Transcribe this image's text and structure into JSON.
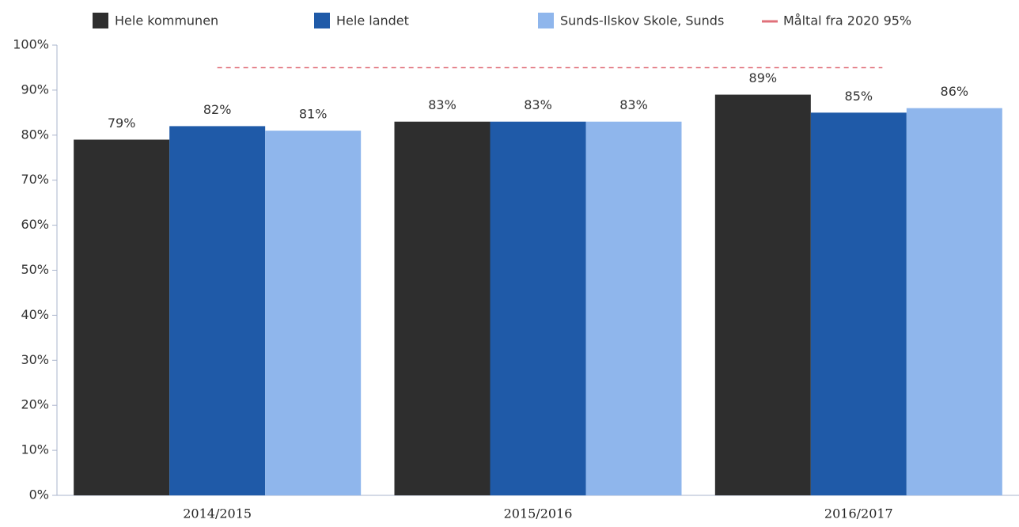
{
  "chart_data": {
    "type": "bar",
    "categories": [
      "2014/2015",
      "2015/2016",
      "2016/2017"
    ],
    "series": [
      {
        "name": "Hele kommunen",
        "color": "#2e2e2e",
        "values": [
          79,
          83,
          89
        ],
        "value_labels": [
          "79%",
          "83%",
          "89%"
        ]
      },
      {
        "name": "Hele landet",
        "color": "#1f5aa8",
        "values": [
          82,
          83,
          85
        ],
        "value_labels": [
          "82%",
          "83%",
          "85%"
        ]
      },
      {
        "name": "Sunds-Ilskov Skole, Sunds",
        "color": "#8fb6ec",
        "values": [
          81,
          83,
          86
        ],
        "value_labels": [
          "81%",
          "83%",
          "86%"
        ]
      }
    ],
    "target": {
      "name": "Måltal fra 2020 95%",
      "value": 95,
      "color": "#e0707a"
    },
    "ylim": [
      0,
      100
    ],
    "yticks": [
      {
        "value": 0,
        "label": "0%"
      },
      {
        "value": 10,
        "label": "10%"
      },
      {
        "value": 20,
        "label": "20%"
      },
      {
        "value": 30,
        "label": "30%"
      },
      {
        "value": 40,
        "label": "40%"
      },
      {
        "value": 50,
        "label": "50%"
      },
      {
        "value": 60,
        "label": "60%"
      },
      {
        "value": 70,
        "label": "70%"
      },
      {
        "value": 80,
        "label": "80%"
      },
      {
        "value": 90,
        "label": "90%"
      },
      {
        "value": 100,
        "label": "100%"
      }
    ]
  }
}
